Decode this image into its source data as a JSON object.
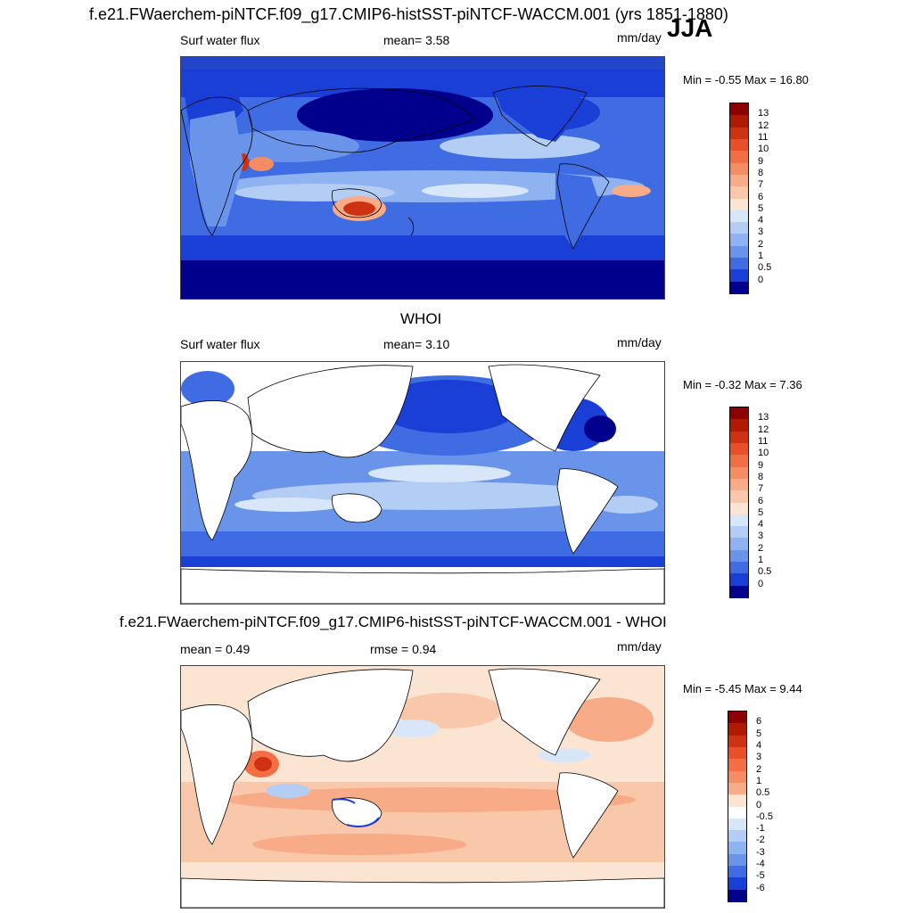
{
  "header": {
    "title": "f.e21.FWaerchem-piNTCF.f09_g17.CMIP6-histSST-piNTCF-WACCM.001 (yrs 1851-1880)",
    "season": "JJA"
  },
  "panels": [
    {
      "id": "model",
      "variable": "Surf water flux",
      "mean_text": "mean=   3.58",
      "units": "mm/day",
      "minmax": "Min =  -0.55 Max =  16.80",
      "colorbar": {
        "labels": [
          "13",
          "12",
          "11",
          "10",
          "9",
          "8",
          "7",
          "6",
          "5",
          "4",
          "3",
          "2",
          "1",
          "0.5",
          "0"
        ],
        "colors": [
          "#8b0000",
          "#b01a00",
          "#cf3212",
          "#e8502a",
          "#f26f45",
          "#f58d64",
          "#f7ab86",
          "#f9c8aa",
          "#fbe5d2",
          "#d8e6fa",
          "#b4cdf5",
          "#8fb2f0",
          "#6a94ea",
          "#3f6be3",
          "#1a3fd6",
          "#00008c"
        ]
      }
    },
    {
      "id": "obs",
      "section_title": "WHOI",
      "variable": "Surf water flux",
      "mean_text": "mean=   3.10",
      "units": "mm/day",
      "minmax": "Min =  -0.32 Max =   7.36",
      "colorbar": {
        "labels": [
          "13",
          "12",
          "11",
          "10",
          "9",
          "8",
          "7",
          "6",
          "5",
          "4",
          "3",
          "2",
          "1",
          "0.5",
          "0"
        ],
        "colors": [
          "#8b0000",
          "#b01a00",
          "#cf3212",
          "#e8502a",
          "#f26f45",
          "#f58d64",
          "#f7ab86",
          "#f9c8aa",
          "#fbe5d2",
          "#d8e6fa",
          "#b4cdf5",
          "#8fb2f0",
          "#6a94ea",
          "#3f6be3",
          "#1a3fd6",
          "#00008c"
        ]
      }
    },
    {
      "id": "diff",
      "section_title": "f.e21.FWaerchem-piNTCF.f09_g17.CMIP6-histSST-piNTCF-WACCM.001 - WHOI",
      "mean_text": "mean =   0.49",
      "rmse_text": "rmse =   0.94",
      "units": "mm/day",
      "minmax": "Min =  -5.45 Max =   9.44",
      "colorbar": {
        "labels": [
          "6",
          "5",
          "4",
          "3",
          "2",
          "1",
          "0.5",
          "0",
          "-0.5",
          "-1",
          "-2",
          "-3",
          "-4",
          "-5",
          "-6"
        ],
        "colors": [
          "#8b0000",
          "#b01a00",
          "#cf3212",
          "#e8502a",
          "#f26f45",
          "#f58d64",
          "#f7ab86",
          "#fbe5d2",
          "#ffffff",
          "#d8e6fa",
          "#b4cdf5",
          "#8fb2f0",
          "#6a94ea",
          "#3f6be3",
          "#1a3fd6",
          "#00008c"
        ]
      }
    }
  ]
}
